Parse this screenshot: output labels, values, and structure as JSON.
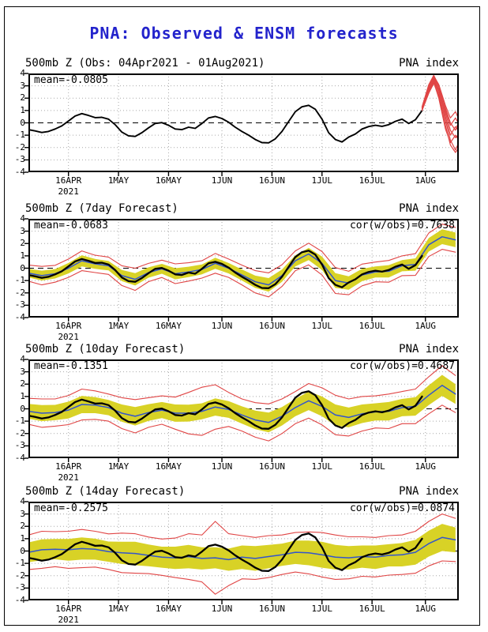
{
  "page": {
    "title": "PNA: Observed & ENSM forecasts",
    "colors": {
      "title_blue": "#2323cc",
      "obs_black": "#000000",
      "ens_blue": "#3355cc",
      "band_yellow": "#d8d226",
      "red": "#e04545",
      "grid_gray": "#a9a9a9",
      "zero_black": "#000000",
      "frame_black": "#000000"
    }
  },
  "axis": {
    "ylim": [
      -4,
      4
    ],
    "yticks": [
      "4",
      "3",
      "2",
      "1",
      "0",
      "-1",
      "-2",
      "-3",
      "-4"
    ],
    "x_total_days": 129,
    "x_start_date": "04Apr2021",
    "xticks": [
      {
        "day": 12,
        "label": "16APR",
        "year": "2021"
      },
      {
        "day": 27,
        "label": "1MAY"
      },
      {
        "day": 42,
        "label": "16MAY"
      },
      {
        "day": 58,
        "label": "1JUN"
      },
      {
        "day": 73,
        "label": "16JUN"
      },
      {
        "day": 88,
        "label": "1JUL"
      },
      {
        "day": 103,
        "label": "16JUL"
      },
      {
        "day": 119,
        "label": "1AUG"
      }
    ]
  },
  "chart_data": [
    {
      "type": "line",
      "title": "500mb Z (Obs: 04Apr2021 - 01Aug2021)",
      "right_label": "PNA index",
      "mean_label": "mean=-0.0805",
      "obs": {
        "name": "observed PNA index",
        "x_start": 0,
        "x_step": 2,
        "values": [
          -0.55,
          -0.65,
          -0.78,
          -0.7,
          -0.5,
          -0.25,
          0.15,
          0.55,
          0.75,
          0.6,
          0.42,
          0.45,
          0.3,
          -0.15,
          -0.75,
          -1.05,
          -1.1,
          -0.8,
          -0.4,
          -0.05,
          0.02,
          -0.2,
          -0.5,
          -0.55,
          -0.35,
          -0.45,
          -0.05,
          0.4,
          0.52,
          0.35,
          0.05,
          -0.35,
          -0.7,
          -1.0,
          -1.35,
          -1.6,
          -1.62,
          -1.3,
          -0.7,
          0.1,
          0.9,
          1.3,
          1.42,
          1.1,
          0.3,
          -0.8,
          -1.35,
          -1.55,
          -1.15,
          -0.9,
          -0.5,
          -0.3,
          -0.2,
          -0.28,
          -0.15,
          0.12,
          0.3,
          -0.05,
          0.25,
          1.0
        ]
      },
      "members_name": "ensemble forecast members",
      "members": [
        [
          [
            118,
            1.2
          ],
          [
            120,
            2.8
          ],
          [
            121.5,
            3.7
          ],
          [
            123,
            2.9
          ],
          [
            125,
            0.8
          ],
          [
            126.5,
            -0.6
          ],
          [
            128,
            -1.2
          ],
          [
            129,
            -0.9
          ]
        ],
        [
          [
            118,
            1.1
          ],
          [
            120,
            2.6
          ],
          [
            121.5,
            3.4
          ],
          [
            123,
            2.4
          ],
          [
            125,
            0.2
          ],
          [
            126.5,
            -1.4
          ],
          [
            128,
            -2.2
          ],
          [
            129,
            -1.6
          ]
        ],
        [
          [
            118,
            1.3
          ],
          [
            120,
            3.0
          ],
          [
            121.5,
            3.8
          ],
          [
            123,
            3.1
          ],
          [
            125,
            1.4
          ],
          [
            126.5,
            0.4
          ],
          [
            128,
            0.9
          ],
          [
            129,
            0.3
          ]
        ],
        [
          [
            118,
            1.0
          ],
          [
            120,
            2.4
          ],
          [
            121.5,
            3.2
          ],
          [
            123,
            2.2
          ],
          [
            125,
            -0.2
          ],
          [
            126.5,
            -1.8
          ],
          [
            128,
            -2.4
          ],
          [
            129,
            -2.0
          ]
        ],
        [
          [
            118,
            1.25
          ],
          [
            120,
            2.9
          ],
          [
            121.5,
            3.6
          ],
          [
            123,
            2.7
          ],
          [
            125,
            0.5
          ],
          [
            126.5,
            -1.0
          ],
          [
            128,
            -0.3
          ],
          [
            129,
            -0.7
          ]
        ],
        [
          [
            118,
            1.15
          ],
          [
            120,
            2.7
          ],
          [
            121.5,
            3.5
          ],
          [
            123,
            2.6
          ],
          [
            125,
            1.0
          ],
          [
            126.5,
            -0.2
          ],
          [
            128,
            0.4
          ],
          [
            129,
            -0.1
          ]
        ],
        [
          [
            118,
            1.05
          ],
          [
            120,
            2.5
          ],
          [
            121.5,
            3.3
          ],
          [
            123,
            2.0
          ],
          [
            125,
            -0.5
          ],
          [
            126.5,
            -1.6
          ],
          [
            128,
            -1.0
          ],
          [
            129,
            -1.4
          ]
        ],
        [
          [
            118,
            1.3
          ],
          [
            120,
            3.1
          ],
          [
            121.5,
            3.85
          ],
          [
            123,
            3.0
          ],
          [
            125,
            1.2
          ],
          [
            126.5,
            0.0
          ],
          [
            128,
            -0.6
          ],
          [
            129,
            0.1
          ]
        ]
      ]
    },
    {
      "type": "line+band",
      "title": "500mb Z (7day Forecast)",
      "right_label": "PNA index",
      "mean_label": "mean=-0.0683",
      "cor_label": "cor(w/obs)=0.7638",
      "obs": {
        "x_start": 0,
        "x_step": 2,
        "values": [
          -0.55,
          -0.65,
          -0.78,
          -0.7,
          -0.5,
          -0.25,
          0.15,
          0.55,
          0.75,
          0.6,
          0.42,
          0.45,
          0.3,
          -0.15,
          -0.75,
          -1.05,
          -1.1,
          -0.8,
          -0.4,
          -0.05,
          0.02,
          -0.2,
          -0.5,
          -0.55,
          -0.35,
          -0.45,
          -0.05,
          0.4,
          0.52,
          0.35,
          0.05,
          -0.35,
          -0.7,
          -1.0,
          -1.35,
          -1.6,
          -1.62,
          -1.3,
          -0.7,
          0.1,
          0.9,
          1.3,
          1.42,
          1.1,
          0.3,
          -0.8,
          -1.35,
          -1.55,
          -1.15,
          -0.9,
          -0.5,
          -0.3,
          -0.2,
          -0.28,
          -0.15,
          0.12,
          0.3,
          -0.05,
          0.25,
          1.0
        ]
      },
      "ens": {
        "name": "ensemble mean",
        "x_start": 0,
        "x_step": 4,
        "values": [
          -0.4,
          -0.6,
          -0.45,
          0.0,
          0.6,
          0.35,
          0.2,
          -0.6,
          -0.9,
          -0.35,
          -0.05,
          -0.45,
          -0.3,
          -0.1,
          0.4,
          0.0,
          -0.55,
          -1.1,
          -1.35,
          -0.6,
          0.6,
          1.15,
          0.4,
          -1.0,
          -1.2,
          -0.55,
          -0.3,
          -0.25,
          0.2,
          0.3,
          1.9,
          2.55,
          2.3
        ],
        "band_halfwidth": [
          0.35,
          0.4,
          0.38,
          0.42,
          0.45,
          0.4,
          0.38,
          0.45,
          0.5,
          0.42,
          0.4,
          0.45,
          0.42,
          0.4,
          0.45,
          0.42,
          0.45,
          0.5,
          0.55,
          0.5,
          0.45,
          0.5,
          0.55,
          0.6,
          0.55,
          0.5,
          0.45,
          0.5,
          0.45,
          0.5,
          0.55,
          0.6,
          0.6
        ],
        "envelope_extra": [
          0.3,
          0.35,
          0.3,
          0.32,
          0.35,
          0.3,
          0.32,
          0.35,
          0.4,
          0.32,
          0.3,
          0.35,
          0.32,
          0.3,
          0.35,
          0.32,
          0.35,
          0.4,
          0.42,
          0.38,
          0.35,
          0.38,
          0.4,
          0.45,
          0.4,
          0.38,
          0.35,
          0.38,
          0.35,
          0.38,
          0.4,
          0.42,
          0.4
        ]
      }
    },
    {
      "type": "line+band",
      "title": "500mb Z (10day Forecast)",
      "right_label": "PNA index",
      "mean_label": "mean=-0.1351",
      "cor_label": "cor(w/obs)=0.4687",
      "obs": {
        "x_start": 0,
        "x_step": 2,
        "values": [
          -0.55,
          -0.65,
          -0.78,
          -0.7,
          -0.5,
          -0.25,
          0.15,
          0.55,
          0.75,
          0.6,
          0.42,
          0.45,
          0.3,
          -0.15,
          -0.75,
          -1.05,
          -1.1,
          -0.8,
          -0.4,
          -0.05,
          0.02,
          -0.2,
          -0.5,
          -0.55,
          -0.35,
          -0.45,
          -0.05,
          0.4,
          0.52,
          0.35,
          0.05,
          -0.35,
          -0.7,
          -1.0,
          -1.35,
          -1.6,
          -1.62,
          -1.3,
          -0.7,
          0.1,
          0.9,
          1.3,
          1.42,
          1.1,
          0.3,
          -0.8,
          -1.35,
          -1.55,
          -1.15,
          -0.9,
          -0.5,
          -0.3,
          -0.2,
          -0.28,
          -0.15,
          0.12,
          0.3,
          -0.05,
          0.25,
          1.0
        ]
      },
      "ens": {
        "name": "ensemble mean",
        "x_start": 0,
        "x_step": 4,
        "values": [
          -0.2,
          -0.35,
          -0.3,
          -0.1,
          0.35,
          0.3,
          0.1,
          -0.35,
          -0.6,
          -0.3,
          -0.1,
          -0.35,
          -0.35,
          -0.2,
          0.15,
          -0.05,
          -0.5,
          -0.9,
          -1.1,
          -0.6,
          0.1,
          0.65,
          0.2,
          -0.5,
          -0.7,
          -0.4,
          -0.25,
          -0.2,
          0.1,
          0.2,
          1.1,
          1.9,
          1.2
        ],
        "band_halfwidth": [
          0.6,
          0.65,
          0.62,
          0.68,
          0.7,
          0.65,
          0.62,
          0.7,
          0.75,
          0.68,
          0.65,
          0.7,
          0.68,
          0.65,
          0.7,
          0.68,
          0.7,
          0.75,
          0.8,
          0.75,
          0.7,
          0.75,
          0.8,
          0.85,
          0.8,
          0.75,
          0.7,
          0.75,
          0.7,
          0.75,
          0.8,
          0.85,
          0.8
        ],
        "envelope_extra": [
          0.45,
          0.5,
          0.48,
          0.5,
          0.55,
          0.5,
          0.48,
          0.55,
          0.6,
          0.52,
          0.5,
          0.6,
          1.0,
          1.3,
          1.1,
          0.7,
          0.6,
          0.65,
          0.7,
          0.65,
          0.6,
          0.65,
          0.7,
          0.75,
          0.7,
          0.65,
          0.6,
          0.65,
          0.6,
          0.65,
          0.7,
          0.75,
          0.7
        ]
      }
    },
    {
      "type": "line+band",
      "title": "500mb Z (14day Forecast)",
      "right_label": "PNA index",
      "mean_label": "mean=-0.2575",
      "cor_label": "cor(w/obs)=0.0874",
      "obs": {
        "x_start": 0,
        "x_step": 2,
        "values": [
          -0.55,
          -0.65,
          -0.78,
          -0.7,
          -0.5,
          -0.25,
          0.15,
          0.55,
          0.75,
          0.6,
          0.42,
          0.45,
          0.3,
          -0.15,
          -0.75,
          -1.05,
          -1.1,
          -0.8,
          -0.4,
          -0.05,
          0.02,
          -0.2,
          -0.5,
          -0.55,
          -0.35,
          -0.45,
          -0.05,
          0.4,
          0.52,
          0.35,
          0.05,
          -0.35,
          -0.7,
          -1.0,
          -1.35,
          -1.6,
          -1.62,
          -1.3,
          -0.7,
          0.1,
          0.9,
          1.3,
          1.42,
          1.1,
          0.3,
          -0.8,
          -1.35,
          -1.55,
          -1.15,
          -0.9,
          -0.5,
          -0.3,
          -0.2,
          -0.28,
          -0.15,
          0.12,
          0.3,
          -0.05,
          0.25,
          1.0
        ]
      },
      "ens": {
        "name": "ensemble mean",
        "x_start": 0,
        "x_step": 4,
        "values": [
          -0.1,
          0.1,
          0.15,
          0.1,
          0.2,
          0.15,
          -0.05,
          -0.15,
          -0.2,
          -0.35,
          -0.5,
          -0.55,
          -0.45,
          -0.6,
          -0.55,
          -0.7,
          -0.5,
          -0.6,
          -0.45,
          -0.3,
          -0.1,
          -0.15,
          -0.3,
          -0.5,
          -0.55,
          -0.45,
          -0.5,
          -0.35,
          -0.3,
          -0.1,
          0.6,
          1.1,
          0.9
        ],
        "band_halfwidth": [
          0.8,
          0.85,
          0.82,
          0.88,
          0.9,
          0.85,
          0.82,
          0.9,
          0.95,
          0.88,
          0.85,
          0.9,
          0.95,
          0.9,
          0.85,
          0.9,
          0.95,
          1.0,
          0.95,
          0.9,
          0.95,
          1.0,
          1.05,
          1.0,
          0.95,
          0.9,
          0.95,
          0.9,
          0.95,
          1.0,
          1.05,
          1.1,
          1.0
        ],
        "envelope_extra": [
          0.6,
          0.65,
          0.6,
          0.62,
          0.65,
          0.6,
          0.62,
          0.7,
          0.65,
          0.6,
          0.62,
          0.7,
          0.9,
          1.0,
          2.1,
          1.2,
          0.8,
          0.7,
          0.75,
          0.7,
          0.65,
          0.7,
          0.75,
          0.8,
          0.75,
          0.7,
          0.65,
          0.7,
          0.65,
          0.7,
          0.75,
          0.8,
          0.75
        ]
      }
    }
  ]
}
